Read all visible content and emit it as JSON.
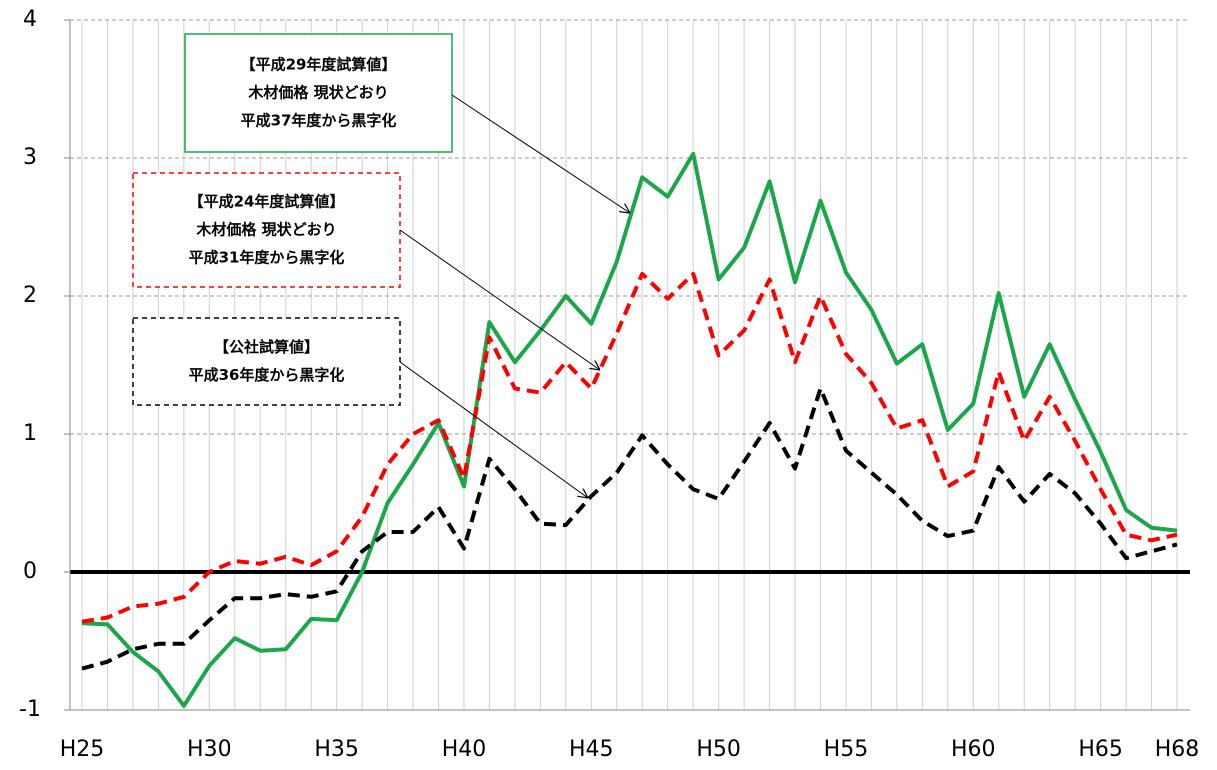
{
  "chart_data": {
    "type": "line",
    "categories": [
      "H25",
      null,
      null,
      null,
      null,
      "H30",
      null,
      null,
      null,
      null,
      "H35",
      null,
      null,
      null,
      null,
      "H40",
      null,
      null,
      null,
      null,
      "H45",
      null,
      null,
      null,
      null,
      "H50",
      null,
      null,
      null,
      null,
      "H55",
      null,
      null,
      null,
      null,
      "H60",
      null,
      null,
      null,
      null,
      "H65",
      null,
      null,
      "H68"
    ],
    "ylim": [
      -1,
      4
    ],
    "yticks": [
      -1,
      0,
      1,
      2,
      3,
      4
    ],
    "grid": true,
    "series": [
      {
        "name": "【平成29年度試算値】",
        "color": "#1aa64a",
        "style": "solid",
        "values": [
          -0.37,
          -0.38,
          -0.58,
          -0.72,
          -0.97,
          -0.68,
          -0.48,
          -0.57,
          -0.56,
          -0.34,
          -0.35,
          0.0,
          0.5,
          0.78,
          1.08,
          0.62,
          1.81,
          1.52,
          1.75,
          2.0,
          1.8,
          2.25,
          2.86,
          2.72,
          3.03,
          2.12,
          2.35,
          2.83,
          2.1,
          2.69,
          2.17,
          1.9,
          1.51,
          1.65,
          1.03,
          1.22,
          2.02,
          1.27,
          1.65,
          1.25,
          0.87,
          0.45,
          0.32,
          0.3
        ]
      },
      {
        "name": "【平成24年度試算値】",
        "color": "#ff0000",
        "style": "dashed",
        "values": [
          -0.36,
          -0.33,
          -0.25,
          -0.23,
          -0.18,
          0.0,
          0.08,
          0.06,
          0.11,
          0.05,
          0.15,
          0.4,
          0.78,
          1.0,
          1.1,
          0.68,
          1.7,
          1.33,
          1.3,
          1.52,
          1.33,
          1.73,
          2.16,
          1.98,
          2.16,
          1.57,
          1.75,
          2.12,
          1.52,
          2.0,
          1.58,
          1.37,
          1.04,
          1.1,
          0.62,
          0.73,
          1.45,
          0.95,
          1.27,
          0.95,
          0.6,
          0.27,
          0.23,
          0.27
        ]
      },
      {
        "name": "【公社試算値】",
        "color": "#000000",
        "style": "dashed",
        "values": [
          -0.7,
          -0.65,
          -0.56,
          -0.52,
          -0.52,
          -0.35,
          -0.19,
          -0.19,
          -0.16,
          -0.18,
          -0.14,
          0.15,
          0.29,
          0.29,
          0.47,
          0.17,
          0.82,
          0.6,
          0.35,
          0.34,
          0.55,
          0.72,
          0.99,
          0.78,
          0.6,
          0.53,
          0.8,
          1.08,
          0.75,
          1.33,
          0.88,
          0.72,
          0.56,
          0.37,
          0.26,
          0.3,
          0.76,
          0.51,
          0.71,
          0.57,
          0.35,
          0.1,
          0.15,
          0.2
        ]
      }
    ],
    "annotations": [
      {
        "lines": [
          "【平成29年度試算値】",
          "木材価格 現状どおり",
          "平成37年度から黒字化"
        ],
        "color": "#1aa64a",
        "style": "solid"
      },
      {
        "lines": [
          "【平成24年度試算値】",
          "木材価格 現状どおり",
          "平成31年度から黒字化"
        ],
        "color": "#ff0000",
        "style": "dashed"
      },
      {
        "lines": [
          "【公社試算値】",
          "平成36年度から黒字化"
        ],
        "color": "#000000",
        "style": "dashed"
      }
    ]
  }
}
